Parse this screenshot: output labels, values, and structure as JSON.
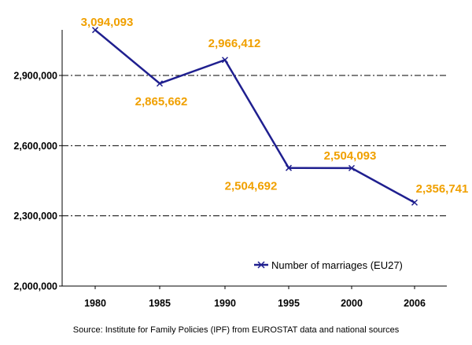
{
  "chart_data": {
    "type": "line",
    "categories": [
      "1980",
      "1985",
      "1990",
      "1995",
      "2000",
      "2006"
    ],
    "series": [
      {
        "name": "Number of marriages (EU27)",
        "values": [
          3094093,
          2865662,
          2966412,
          2504692,
          2504093,
          2356741
        ],
        "value_labels": [
          "3,094,093",
          "2,865,662",
          "2,966,412",
          "2,504,692",
          "2,504,093",
          "2,356,741"
        ]
      }
    ],
    "yticks": [
      "2,000,000",
      "2,300,000",
      "2,600,000",
      "2,900,000"
    ],
    "ytick_values": [
      2000000,
      2300000,
      2600000,
      2900000
    ],
    "ylim": [
      2000000,
      3100000
    ],
    "grid": "horizontal dash-dot",
    "legend_position": "bottom-right",
    "marker": "x",
    "line_color": "#1f1f8f",
    "label_color": "#f0a000"
  },
  "source": "Source: Institute for Family Policies (IPF) from EUROSTAT data and national sources"
}
